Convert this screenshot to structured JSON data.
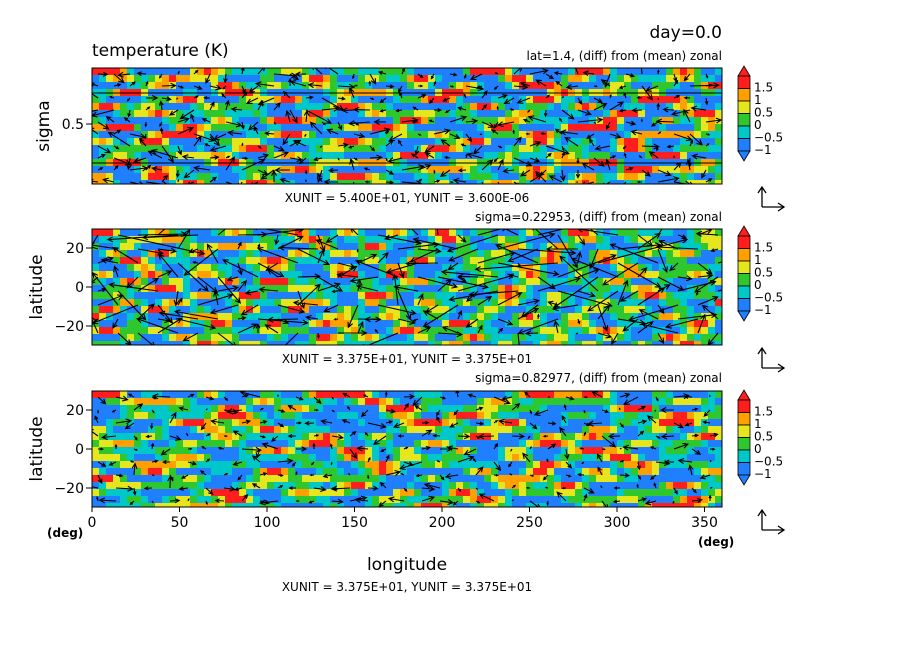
{
  "figure": {
    "day_label": "day=0.0",
    "title": "temperature (K)",
    "x_axis_title": "longitude"
  },
  "colors": {
    "blue": "#1f7fff",
    "cyan": "#00c8c8",
    "green": "#2ec82e",
    "yellow": "#e6e61e",
    "orange": "#ff9f00",
    "red": "#ff1e1e"
  },
  "colorbar": {
    "ticks": [
      "1.5",
      "1",
      "0.5",
      "0",
      "−0.5",
      "−1"
    ]
  },
  "chart_data": [
    {
      "type": "heatmap",
      "title": "temperature (K)",
      "subtitle": "lat=1.4, (diff) from (mean) zonal",
      "ylabel": "sigma",
      "y_ticks": [
        "0.5"
      ],
      "units_note": "XUNIT = 5.400E+01, YUNIT = 3.600E-06",
      "color_levels": [
        -1,
        -0.5,
        0,
        0.5,
        1,
        1.5
      ],
      "overlay": "wind vectors"
    },
    {
      "type": "heatmap",
      "subtitle": "sigma=0.22953, (diff) from (mean) zonal",
      "ylabel": "latitude",
      "y_ticks": [
        "20",
        "0",
        "−20"
      ],
      "ylim": [
        -30,
        30
      ],
      "units_note": "XUNIT = 3.375E+01, YUNIT = 3.375E+01",
      "color_levels": [
        -1,
        -0.5,
        0,
        0.5,
        1,
        1.5
      ],
      "overlay": "wind vectors"
    },
    {
      "type": "heatmap",
      "subtitle": "sigma=0.82977, (diff) from (mean) zonal",
      "ylabel": "latitude",
      "y_ticks": [
        "20",
        "0",
        "−20"
      ],
      "ylim": [
        -30,
        30
      ],
      "xlabel": "longitude",
      "x_ticks": [
        "0",
        "50",
        "100",
        "150",
        "200",
        "250",
        "300",
        "350"
      ],
      "xlim": [
        0,
        360
      ],
      "x_unit_left": "(deg)",
      "x_unit_right": "(deg)",
      "units_note": "XUNIT = 3.375E+01, YUNIT = 3.375E+01",
      "color_levels": [
        -1,
        -0.5,
        0,
        0.5,
        1,
        1.5
      ],
      "overlay": "wind vectors"
    }
  ]
}
